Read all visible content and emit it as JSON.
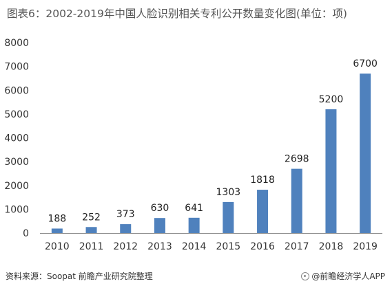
{
  "title": "图表6：2002-2019年中国人脸识别相关专利公开数量变化图(单位：项)",
  "source": "资料来源：Soopat 前瞻产业研究院整理",
  "brand": "@前瞻经济学人APP",
  "colors": {
    "bar": "#4f81bd",
    "axis": "#888888",
    "text": "#333333"
  },
  "chart_data": {
    "type": "bar",
    "categories": [
      "2010",
      "2011",
      "2012",
      "2013",
      "2014",
      "2015",
      "2016",
      "2017",
      "2018",
      "2019"
    ],
    "values": [
      188,
      252,
      373,
      630,
      641,
      1303,
      1818,
      2698,
      5200,
      6700
    ],
    "yticks": [
      0,
      1000,
      2000,
      3000,
      4000,
      5000,
      6000,
      7000,
      8000
    ],
    "ylim": [
      0,
      8000
    ],
    "grid": false,
    "legend": "none"
  }
}
